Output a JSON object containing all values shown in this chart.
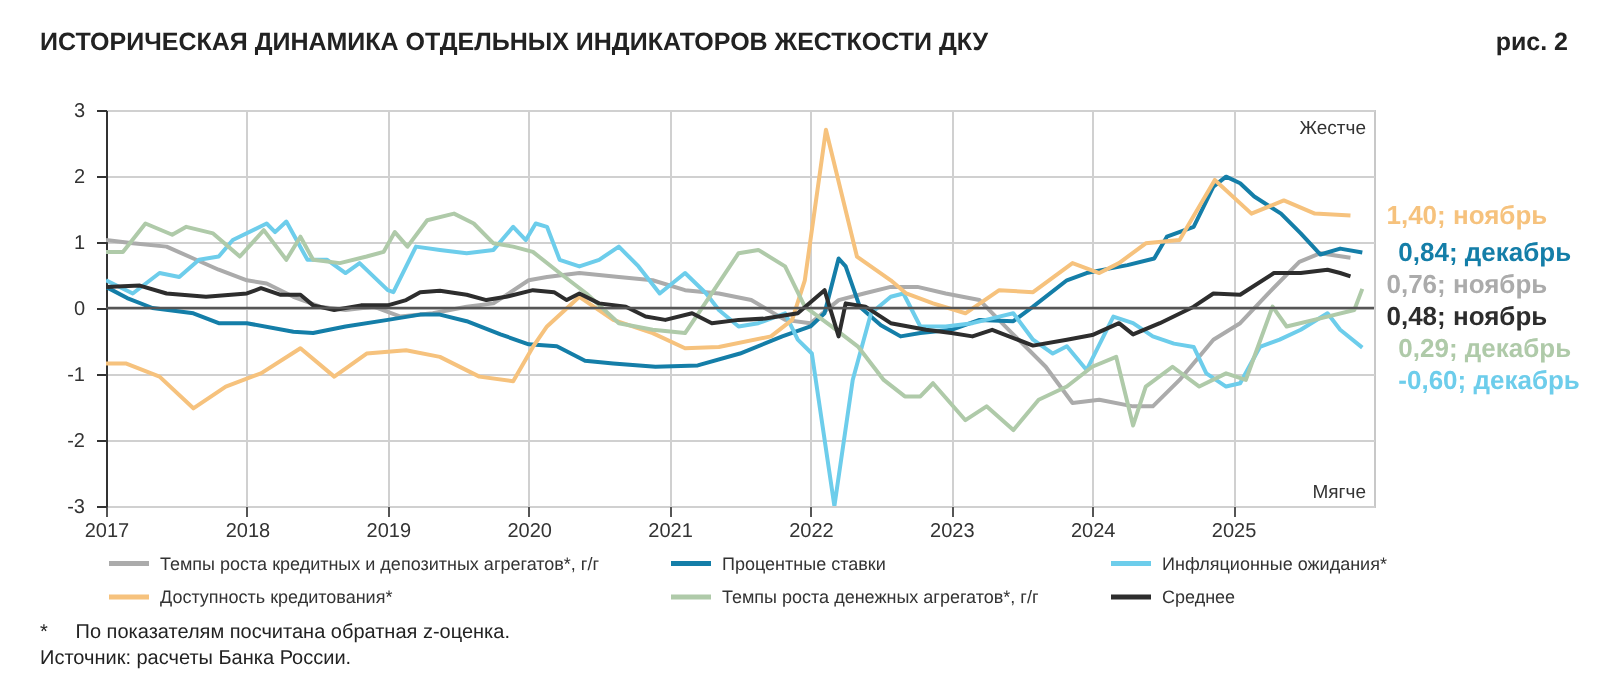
{
  "chart_data": {
    "type": "line",
    "title": "ИСТОРИЧЕСКАЯ ДИНАМИКА ОТДЕЛЬНЫХ ИНДИКАТОРОВ ЖЕСТКОСТИ ДКУ",
    "xlim": [
      2017,
      2026
    ],
    "xticks": [
      2017,
      2018,
      2019,
      2020,
      2021,
      2022,
      2023,
      2024,
      2025
    ],
    "ylim": [
      -3,
      3
    ],
    "yticks": [
      -3,
      -2,
      -1,
      0,
      1,
      2,
      3
    ],
    "grid": true,
    "legend": "bottom",
    "ref_lines": [
      {
        "axis": "y",
        "value": 0,
        "color": "#555555"
      }
    ],
    "annotations": [
      "рис. 2",
      "Жестче",
      "Мягче",
      "*     По показателям посчитана обратная z-оценка.",
      "Источник: расчеты Банка России."
    ],
    "series": [
      {
        "name": "Темпы роста кредитных и депозитных агрегатов*, г/г",
        "color": "#ababab",
        "x": [
          2017,
          2017.19,
          2017.43,
          2017.62,
          2017.8,
          2018,
          2018.14,
          2018.33,
          2018.52,
          2018.7,
          2018.9,
          2019.09,
          2019.32,
          2019.56,
          2019.75,
          2020,
          2020.13,
          2020.36,
          2020.64,
          2020.88,
          2021.11,
          2021.35,
          2021.58,
          2021.82,
          2022,
          2022.2,
          2022.38,
          2022.57,
          2022.76,
          2022.96,
          2023.2,
          2023.43,
          2023.67,
          2023.86,
          2024.05,
          2024.29,
          2024.43,
          2024.62,
          2024.86,
          2025.05,
          2025.24,
          2025.47,
          2025.62,
          2025.833
        ],
        "values": [
          1.03,
          0.98,
          0.93,
          0.75,
          0.58,
          0.42,
          0.37,
          0.17,
          0.02,
          -0.03,
          0.02,
          -0.13,
          -0.08,
          0.02,
          0.07,
          0.42,
          0.47,
          0.53,
          0.47,
          0.42,
          0.27,
          0.22,
          0.12,
          -0.18,
          -0.23,
          0.12,
          0.22,
          0.32,
          0.32,
          0.22,
          0.12,
          -0.38,
          -0.89,
          -1.44,
          -1.39,
          -1.49,
          -1.49,
          -1.09,
          -0.48,
          -0.23,
          0.2,
          0.7,
          0.83,
          0.76
        ],
        "value_labels": [
          null,
          null,
          null,
          null,
          null,
          null,
          null,
          null,
          null,
          null,
          null,
          null,
          null,
          null,
          null,
          null,
          null,
          null,
          null,
          null,
          null,
          null,
          null,
          null,
          null,
          null,
          null,
          null,
          null,
          null,
          null,
          null,
          null,
          null,
          null,
          null,
          null,
          null,
          null,
          null,
          null,
          null,
          null,
          "0,76; ноябрь"
        ]
      },
      {
        "name": "Процентные ставки",
        "color": "#147ea8",
        "x": [
          2017,
          2017.15,
          2017.33,
          2017.62,
          2017.8,
          2018,
          2018.33,
          2018.47,
          2018.7,
          2019,
          2019.23,
          2019.37,
          2019.56,
          2019.8,
          2020,
          2020.2,
          2020.4,
          2020.6,
          2020.9,
          2021.2,
          2021.5,
          2021.8,
          2022,
          2022.1,
          2022.2,
          2022.25,
          2022.35,
          2022.5,
          2022.64,
          2022.78,
          2023,
          2023.2,
          2023.44,
          2023.58,
          2023.82,
          2023.96,
          2024.13,
          2024.25,
          2024.44,
          2024.53,
          2024.72,
          2024.86,
          2024.95,
          2025.05,
          2025.15,
          2025.34,
          2025.48,
          2025.62,
          2025.76,
          2025.917
        ],
        "values": [
          0.32,
          0.15,
          0,
          -0.08,
          -0.23,
          -0.23,
          -0.36,
          -0.38,
          -0.28,
          -0.18,
          -0.1,
          -0.1,
          -0.2,
          -0.4,
          -0.55,
          -0.58,
          -0.8,
          -0.84,
          -0.89,
          -0.87,
          -0.69,
          -0.43,
          -0.28,
          -0.08,
          0.75,
          0.63,
          0.02,
          -0.26,
          -0.43,
          -0.38,
          -0.33,
          -0.18,
          -0.2,
          0.02,
          0.42,
          0.53,
          0.6,
          0.65,
          0.75,
          1.08,
          1.23,
          1.84,
          1.99,
          1.89,
          1.69,
          1.43,
          1.13,
          0.81,
          0.9,
          0.84
        ],
        "value_labels": [
          null,
          null,
          null,
          null,
          null,
          null,
          null,
          null,
          null,
          null,
          null,
          null,
          null,
          null,
          null,
          null,
          null,
          null,
          null,
          null,
          null,
          null,
          null,
          null,
          null,
          null,
          null,
          null,
          null,
          null,
          null,
          null,
          null,
          null,
          null,
          null,
          null,
          null,
          null,
          null,
          null,
          null,
          null,
          null,
          null,
          null,
          null,
          null,
          null,
          "0,84; декабрь"
        ]
      },
      {
        "name": "Инфляционные ожидания*",
        "color": "#6dcdeb",
        "x": [
          2017,
          2017.19,
          2017.38,
          2017.52,
          2017.66,
          2017.8,
          2017.9,
          2018.14,
          2018.2,
          2018.28,
          2018.43,
          2018.57,
          2018.7,
          2018.8,
          2019,
          2019.04,
          2019.2,
          2019.37,
          2019.56,
          2019.75,
          2019.89,
          2019.98,
          2020.05,
          2020.13,
          2020.22,
          2020.36,
          2020.5,
          2020.64,
          2020.78,
          2020.93,
          2021.11,
          2021.26,
          2021.35,
          2021.49,
          2021.63,
          2021.82,
          2021.91,
          2022.01,
          2022.17,
          2022.3,
          2022.43,
          2022.57,
          2022.66,
          2022.78,
          2022.96,
          2023.15,
          2023.34,
          2023.44,
          2023.58,
          2023.72,
          2023.82,
          2023.96,
          2024.15,
          2024.29,
          2024.43,
          2024.58,
          2024.72,
          2024.81,
          2024.95,
          2025.05,
          2025.19,
          2025.33,
          2025.48,
          2025.67,
          2025.76,
          2025.917
        ],
        "values": [
          0.42,
          0.22,
          0.53,
          0.47,
          0.73,
          0.78,
          1.03,
          1.28,
          1.15,
          1.31,
          0.73,
          0.73,
          0.53,
          0.68,
          0.27,
          0.24,
          0.93,
          0.88,
          0.83,
          0.88,
          1.23,
          1.03,
          1.28,
          1.23,
          0.73,
          0.63,
          0.73,
          0.93,
          0.63,
          0.22,
          0.53,
          0.22,
          -0.03,
          -0.28,
          -0.23,
          -0.08,
          -0.48,
          -0.69,
          -3,
          -1.09,
          -0.08,
          0.17,
          0.22,
          -0.28,
          -0.28,
          -0.23,
          -0.13,
          -0.08,
          -0.48,
          -0.69,
          -0.58,
          -0.94,
          -0.13,
          -0.23,
          -0.43,
          -0.54,
          -0.59,
          -0.99,
          -1.19,
          -1.14,
          -0.59,
          -0.48,
          -0.33,
          -0.08,
          -0.33,
          -0.6
        ],
        "value_labels": [
          null,
          null,
          null,
          null,
          null,
          null,
          null,
          null,
          null,
          null,
          null,
          null,
          null,
          null,
          null,
          null,
          null,
          null,
          null,
          null,
          null,
          null,
          null,
          null,
          null,
          null,
          null,
          null,
          null,
          null,
          null,
          null,
          null,
          null,
          null,
          null,
          null,
          null,
          null,
          null,
          null,
          null,
          null,
          null,
          null,
          null,
          null,
          null,
          null,
          null,
          null,
          null,
          null,
          null,
          null,
          null,
          null,
          null,
          null,
          null,
          null,
          null,
          null,
          null,
          null,
          "-0,60; декабрь"
        ]
      },
      {
        "name": "Доступность кредитования*",
        "color": "#f6c27d",
        "x": [
          2017,
          2017.14,
          2017.38,
          2017.62,
          2017.85,
          2018.1,
          2018.38,
          2018.62,
          2018.85,
          2019.13,
          2019.37,
          2019.65,
          2019.89,
          2020.03,
          2020.13,
          2020.36,
          2020.6,
          2020.88,
          2021.11,
          2021.35,
          2021.72,
          2021.87,
          2021.96,
          2022.11,
          2022.33,
          2022.57,
          2022.68,
          2022.87,
          2023.1,
          2023.34,
          2023.58,
          2023.86,
          2024.05,
          2024.19,
          2024.38,
          2024.62,
          2024.87,
          2025.13,
          2025.36,
          2025.58,
          2025.833
        ],
        "values": [
          -0.84,
          -0.84,
          -1.04,
          -1.52,
          -1.19,
          -0.99,
          -0.61,
          -1.04,
          -0.69,
          -0.64,
          -0.74,
          -1.04,
          -1.11,
          -0.59,
          -0.28,
          0.17,
          -0.18,
          -0.38,
          -0.61,
          -0.59,
          -0.43,
          -0.18,
          0.42,
          2.7,
          0.78,
          0.42,
          0.22,
          0.07,
          -0.08,
          0.27,
          0.24,
          0.68,
          0.53,
          0.68,
          0.98,
          1.03,
          1.94,
          1.43,
          1.63,
          1.43,
          1.4
        ],
        "value_labels": [
          null,
          null,
          null,
          null,
          null,
          null,
          null,
          null,
          null,
          null,
          null,
          null,
          null,
          null,
          null,
          null,
          null,
          null,
          null,
          null,
          null,
          null,
          null,
          null,
          null,
          null,
          null,
          null,
          null,
          null,
          null,
          null,
          null,
          null,
          null,
          null,
          null,
          null,
          null,
          null,
          "1,40; ноябрь"
        ]
      },
      {
        "name": "Темпы роста денежных агрегатов*, г/г",
        "color": "#afcaa9",
        "x": [
          2017,
          2017.12,
          2017.28,
          2017.47,
          2017.57,
          2017.76,
          2017.95,
          2018.12,
          2018.28,
          2018.38,
          2018.47,
          2018.66,
          2018.85,
          2018.97,
          2019.05,
          2019.14,
          2019.28,
          2019.47,
          2019.61,
          2019.75,
          2019.89,
          2020.03,
          2020.22,
          2020.41,
          2020.64,
          2020.88,
          2021.11,
          2021.3,
          2021.49,
          2021.63,
          2021.82,
          2021.96,
          2022.15,
          2022.34,
          2022.52,
          2022.67,
          2022.78,
          2022.87,
          2023.1,
          2023.25,
          2023.44,
          2023.62,
          2023.82,
          2024,
          2024.17,
          2024.29,
          2024.38,
          2024.57,
          2024.76,
          2024.95,
          2025.09,
          2025.28,
          2025.38,
          2025.67,
          2025.86,
          2025.917
        ],
        "values": [
          0.85,
          0.85,
          1.28,
          1.11,
          1.23,
          1.13,
          0.78,
          1.18,
          0.73,
          1.08,
          0.73,
          0.68,
          0.78,
          0.85,
          1.15,
          0.93,
          1.33,
          1.43,
          1.28,
          0.98,
          0.93,
          0.85,
          0.53,
          0.22,
          -0.23,
          -0.33,
          -0.38,
          0.22,
          0.83,
          0.88,
          0.63,
          0.02,
          -0.28,
          -0.59,
          -1.09,
          -1.34,
          -1.34,
          -1.14,
          -1.7,
          -1.49,
          -1.85,
          -1.39,
          -1.19,
          -0.89,
          -0.74,
          -1.78,
          -1.19,
          -0.89,
          -1.19,
          -0.99,
          -1.09,
          0.02,
          -0.28,
          -0.13,
          -0.03,
          0.29
        ],
        "value_labels": [
          null,
          null,
          null,
          null,
          null,
          null,
          null,
          null,
          null,
          null,
          null,
          null,
          null,
          null,
          null,
          null,
          null,
          null,
          null,
          null,
          null,
          null,
          null,
          null,
          null,
          null,
          null,
          null,
          null,
          null,
          null,
          null,
          null,
          null,
          null,
          null,
          null,
          null,
          null,
          null,
          null,
          null,
          null,
          null,
          null,
          null,
          null,
          null,
          null,
          null,
          null,
          null,
          null,
          null,
          null,
          "0,29; декабрь"
        ]
      },
      {
        "name": "Среднее",
        "color": "#2d2d2d",
        "x": [
          2017,
          2017.24,
          2017.43,
          2017.71,
          2018,
          2018.1,
          2018.24,
          2018.38,
          2018.47,
          2018.62,
          2018.81,
          2019,
          2019.13,
          2019.23,
          2019.37,
          2019.56,
          2019.7,
          2019.84,
          2020.03,
          2020.18,
          2020.27,
          2020.36,
          2020.5,
          2020.69,
          2020.83,
          2020.97,
          2021.16,
          2021.3,
          2021.49,
          2021.68,
          2021.91,
          2022.1,
          2022.2,
          2022.25,
          2022.39,
          2022.57,
          2022.82,
          2023,
          2023.15,
          2023.29,
          2023.58,
          2023.82,
          2024,
          2024.19,
          2024.29,
          2024.48,
          2024.72,
          2024.86,
          2025.05,
          2025.29,
          2025.48,
          2025.67,
          2025.76,
          2025.833
        ],
        "values": [
          0.32,
          0.34,
          0.22,
          0.17,
          0.22,
          0.3,
          0.2,
          0.2,
          0.04,
          -0.03,
          0.04,
          0.04,
          0.12,
          0.24,
          0.26,
          0.2,
          0.12,
          0.17,
          0.27,
          0.24,
          0.12,
          0.22,
          0.07,
          0.02,
          -0.13,
          -0.18,
          -0.08,
          -0.23,
          -0.18,
          -0.16,
          -0.08,
          0.27,
          -0.43,
          0.07,
          0.02,
          -0.23,
          -0.33,
          -0.38,
          -0.43,
          -0.33,
          -0.57,
          -0.48,
          -0.41,
          -0.23,
          -0.4,
          -0.23,
          0.02,
          0.22,
          0.2,
          0.53,
          0.53,
          0.58,
          0.53,
          0.48
        ],
        "value_labels": [
          null,
          null,
          null,
          null,
          null,
          null,
          null,
          null,
          null,
          null,
          null,
          null,
          null,
          null,
          null,
          null,
          null,
          null,
          null,
          null,
          null,
          null,
          null,
          null,
          null,
          null,
          null,
          null,
          null,
          null,
          null,
          null,
          null,
          null,
          null,
          null,
          null,
          null,
          null,
          null,
          null,
          null,
          null,
          null,
          null,
          null,
          null,
          null,
          null,
          null,
          null,
          null,
          null,
          "0,48; ноябрь"
        ]
      }
    ]
  }
}
